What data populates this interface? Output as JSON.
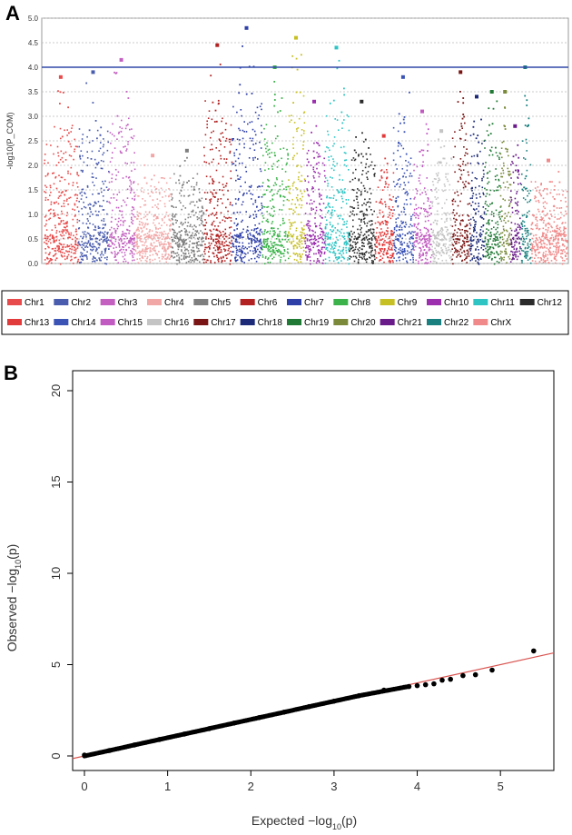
{
  "panels": {
    "a_label": "A",
    "b_label": "B"
  },
  "chart_data": [
    {
      "type": "scatter",
      "subtype": "manhattan",
      "ylabel": "-log10(P_COM)",
      "ylim": [
        0,
        5.0
      ],
      "yticks": [
        "0.0",
        "0.5",
        "1.0",
        "1.5",
        "2.0",
        "2.5",
        "3.0",
        "3.5",
        "4.0",
        "4.5",
        "5.0"
      ],
      "grid": true,
      "threshold_line": {
        "value": 4.0,
        "color": "#3048a8"
      },
      "legend_position": "bottom",
      "series": [
        {
          "name": "Chr1",
          "color": "#e84b4b",
          "peak": 3.8
        },
        {
          "name": "Chr2",
          "color": "#4a5cae",
          "peak": 3.9
        },
        {
          "name": "Chr3",
          "color": "#c360c0",
          "peak": 4.15
        },
        {
          "name": "Chr4",
          "color": "#f2a7a7",
          "peak": 2.2
        },
        {
          "name": "Chr5",
          "color": "#7f7f7f",
          "peak": 2.3
        },
        {
          "name": "Chr6",
          "color": "#b22222",
          "peak": 4.45
        },
        {
          "name": "Chr7",
          "color": "#2e3fa8",
          "peak": 4.8
        },
        {
          "name": "Chr8",
          "color": "#3bb34a",
          "peak": 4.0
        },
        {
          "name": "Chr9",
          "color": "#c7c024",
          "peak": 4.6
        },
        {
          "name": "Chr10",
          "color": "#9c2fae",
          "peak": 3.3
        },
        {
          "name": "Chr11",
          "color": "#2ec4c4",
          "peak": 4.4
        },
        {
          "name": "Chr12",
          "color": "#2b2b2b",
          "peak": 3.3
        },
        {
          "name": "Chr13",
          "color": "#e23b3b",
          "peak": 2.6
        },
        {
          "name": "Chr14",
          "color": "#3a53b5",
          "peak": 3.8
        },
        {
          "name": "Chr15",
          "color": "#c15ac1",
          "peak": 3.1
        },
        {
          "name": "Chr16",
          "color": "#c4c4c4",
          "peak": 2.7
        },
        {
          "name": "Chr17",
          "color": "#7a1515",
          "peak": 3.9
        },
        {
          "name": "Chr18",
          "color": "#1c2a78",
          "peak": 3.4
        },
        {
          "name": "Chr19",
          "color": "#207a35",
          "peak": 3.5
        },
        {
          "name": "Chr20",
          "color": "#7a8a3a",
          "peak": 3.5
        },
        {
          "name": "Chr21",
          "color": "#6a1b8a",
          "peak": 2.8
        },
        {
          "name": "Chr22",
          "color": "#1a7f7f",
          "peak": 4.0
        },
        {
          "name": "ChrX",
          "color": "#f08a8a",
          "peak": 2.1
        }
      ]
    },
    {
      "type": "scatter",
      "subtype": "qq",
      "xlabel": "Expected",
      "ylabel": "Observed",
      "label_expr": "−log",
      "label_sub": "10",
      "label_arg": "(p)",
      "xlim": [
        0,
        5.5
      ],
      "ylim": [
        0,
        20
      ],
      "xticks": [
        "0",
        "1",
        "2",
        "3",
        "4",
        "5"
      ],
      "yticks": [
        "0",
        "5",
        "10",
        "15",
        "20"
      ],
      "grid": false,
      "reference_line": {
        "slope": 1.0,
        "intercept": 0,
        "color": "#d9534f"
      },
      "points": [
        [
          0.0,
          0.05
        ],
        [
          0.3,
          0.3
        ],
        [
          0.6,
          0.6
        ],
        [
          0.9,
          0.9
        ],
        [
          1.2,
          1.2
        ],
        [
          1.5,
          1.5
        ],
        [
          1.8,
          1.8
        ],
        [
          2.1,
          2.1
        ],
        [
          2.4,
          2.4
        ],
        [
          2.7,
          2.7
        ],
        [
          3.0,
          3.0
        ],
        [
          3.3,
          3.3
        ],
        [
          3.6,
          3.6
        ],
        [
          3.9,
          3.8
        ],
        [
          4.0,
          3.85
        ],
        [
          4.1,
          3.9
        ],
        [
          4.2,
          3.95
        ],
        [
          4.3,
          4.15
        ],
        [
          4.4,
          4.2
        ],
        [
          4.55,
          4.4
        ],
        [
          4.7,
          4.45
        ],
        [
          4.9,
          4.7
        ],
        [
          5.4,
          5.75
        ]
      ],
      "point_color": "#000000"
    }
  ]
}
